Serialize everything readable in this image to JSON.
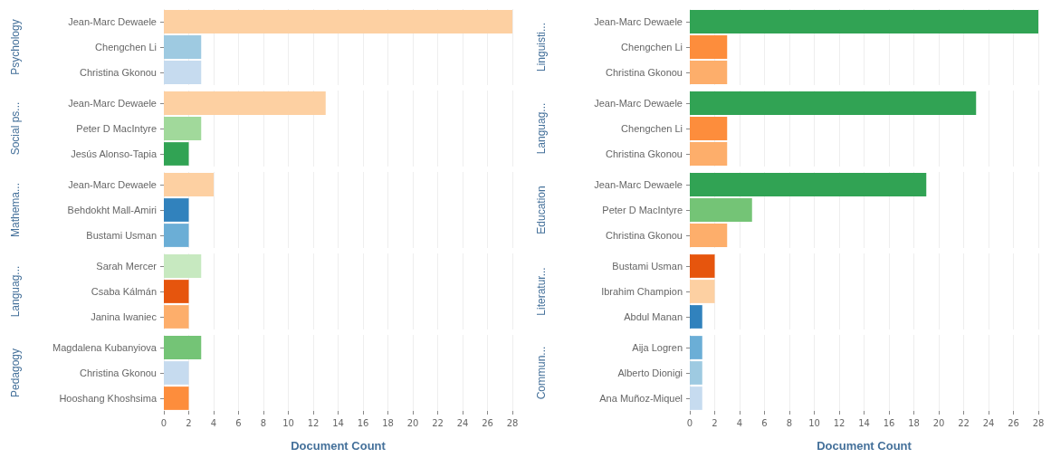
{
  "chart_data": [
    {
      "type": "bar",
      "orientation": "horizontal",
      "ylabel": "Psychology",
      "categories": [
        "Jean-Marc Dewaele",
        "Chengchen Li",
        "Christina Gkonou"
      ],
      "values": [
        28,
        3,
        3
      ],
      "colors": [
        "#fdd0a2",
        "#9ecae1",
        "#c6dbef"
      ],
      "xlim": [
        0,
        28
      ],
      "xticks": [
        0,
        2,
        4,
        6,
        8,
        10,
        12,
        14,
        16,
        18,
        20,
        22,
        24,
        26,
        28
      ],
      "grid": "x",
      "tick_labels": "y"
    },
    {
      "type": "bar",
      "orientation": "horizontal",
      "ylabel": "Social ps...",
      "categories": [
        "Jean-Marc Dewaele",
        "Peter D MacIntyre",
        "Jesús Alonso-Tapia"
      ],
      "values": [
        13,
        3,
        2
      ],
      "colors": [
        "#fdd0a2",
        "#a1d99b",
        "#31a354"
      ],
      "xlim": [
        0,
        28
      ],
      "xticks": [
        0,
        2,
        4,
        6,
        8,
        10,
        12,
        14,
        16,
        18,
        20,
        22,
        24,
        26,
        28
      ],
      "grid": "x",
      "tick_labels": "y"
    },
    {
      "type": "bar",
      "orientation": "horizontal",
      "ylabel": "Mathema...",
      "categories": [
        "Jean-Marc Dewaele",
        "Behdokht Mall-Amiri",
        "Bustami Usman"
      ],
      "values": [
        4,
        2,
        2
      ],
      "colors": [
        "#fdd0a2",
        "#3182bd",
        "#6baed6"
      ],
      "xlim": [
        0,
        28
      ],
      "xticks": [
        0,
        2,
        4,
        6,
        8,
        10,
        12,
        14,
        16,
        18,
        20,
        22,
        24,
        26,
        28
      ],
      "grid": "x",
      "tick_labels": "y"
    },
    {
      "type": "bar",
      "orientation": "horizontal",
      "ylabel": "Languag...",
      "categories": [
        "Sarah Mercer",
        "Csaba Kálmán",
        "Janina Iwaniec"
      ],
      "values": [
        3,
        2,
        2
      ],
      "colors": [
        "#c7e9c0",
        "#e6550d",
        "#fdae6b"
      ],
      "xlim": [
        0,
        28
      ],
      "xticks": [
        0,
        2,
        4,
        6,
        8,
        10,
        12,
        14,
        16,
        18,
        20,
        22,
        24,
        26,
        28
      ],
      "grid": "x",
      "tick_labels": "y"
    },
    {
      "type": "bar",
      "orientation": "horizontal",
      "ylabel": "Pedagogy",
      "xlabel": "Document Count",
      "categories": [
        "Magdalena Kubanyiova",
        "Christina Gkonou",
        "Hooshang Khoshsima"
      ],
      "values": [
        3,
        2,
        2
      ],
      "colors": [
        "#74c476",
        "#c6dbef",
        "#fd8d3c"
      ],
      "xlim": [
        0,
        28
      ],
      "xticks": [
        0,
        2,
        4,
        6,
        8,
        10,
        12,
        14,
        16,
        18,
        20,
        22,
        24,
        26,
        28
      ],
      "grid": "x"
    },
    {
      "type": "bar",
      "orientation": "horizontal",
      "ylabel": "Linguisti...",
      "categories": [
        "Jean-Marc Dewaele",
        "Chengchen Li",
        "Christina Gkonou"
      ],
      "values": [
        28,
        3,
        3
      ],
      "colors": [
        "#31a354",
        "#fd8d3c",
        "#fdae6b"
      ],
      "xlim": [
        0,
        28
      ],
      "xticks": [
        0,
        2,
        4,
        6,
        8,
        10,
        12,
        14,
        16,
        18,
        20,
        22,
        24,
        26,
        28
      ],
      "grid": "x",
      "tick_labels": "y"
    },
    {
      "type": "bar",
      "orientation": "horizontal",
      "ylabel": "Languag...",
      "categories": [
        "Jean-Marc Dewaele",
        "Chengchen Li",
        "Christina Gkonou"
      ],
      "values": [
        23,
        3,
        3
      ],
      "colors": [
        "#31a354",
        "#fd8d3c",
        "#fdae6b"
      ],
      "xlim": [
        0,
        28
      ],
      "xticks": [
        0,
        2,
        4,
        6,
        8,
        10,
        12,
        14,
        16,
        18,
        20,
        22,
        24,
        26,
        28
      ],
      "grid": "x",
      "tick_labels": "y"
    },
    {
      "type": "bar",
      "orientation": "horizontal",
      "ylabel": "Education",
      "categories": [
        "Jean-Marc Dewaele",
        "Peter D MacIntyre",
        "Christina Gkonou"
      ],
      "values": [
        19,
        5,
        3
      ],
      "colors": [
        "#31a354",
        "#74c476",
        "#fdae6b"
      ],
      "xlim": [
        0,
        28
      ],
      "xticks": [
        0,
        2,
        4,
        6,
        8,
        10,
        12,
        14,
        16,
        18,
        20,
        22,
        24,
        26,
        28
      ],
      "grid": "x",
      "tick_labels": "y"
    },
    {
      "type": "bar",
      "orientation": "horizontal",
      "ylabel": "Literatur...",
      "categories": [
        "Bustami Usman",
        "Ibrahim Champion",
        "Abdul Manan"
      ],
      "values": [
        2,
        2,
        1
      ],
      "colors": [
        "#e6550d",
        "#fdd0a2",
        "#3182bd"
      ],
      "xlim": [
        0,
        28
      ],
      "xticks": [
        0,
        2,
        4,
        6,
        8,
        10,
        12,
        14,
        16,
        18,
        20,
        22,
        24,
        26,
        28
      ],
      "grid": "x",
      "tick_labels": "y"
    },
    {
      "type": "bar",
      "orientation": "horizontal",
      "ylabel": "Commun...",
      "xlabel": "Document Count",
      "categories": [
        "Aija Logren",
        "Alberto Dionigi",
        "Ana Muñoz-Miquel"
      ],
      "values": [
        1,
        1,
        1
      ],
      "colors": [
        "#6baed6",
        "#9ecae1",
        "#c6dbef"
      ],
      "xlim": [
        0,
        28
      ],
      "xticks": [
        0,
        2,
        4,
        6,
        8,
        10,
        12,
        14,
        16,
        18,
        20,
        22,
        24,
        26,
        28
      ],
      "grid": "x"
    }
  ]
}
